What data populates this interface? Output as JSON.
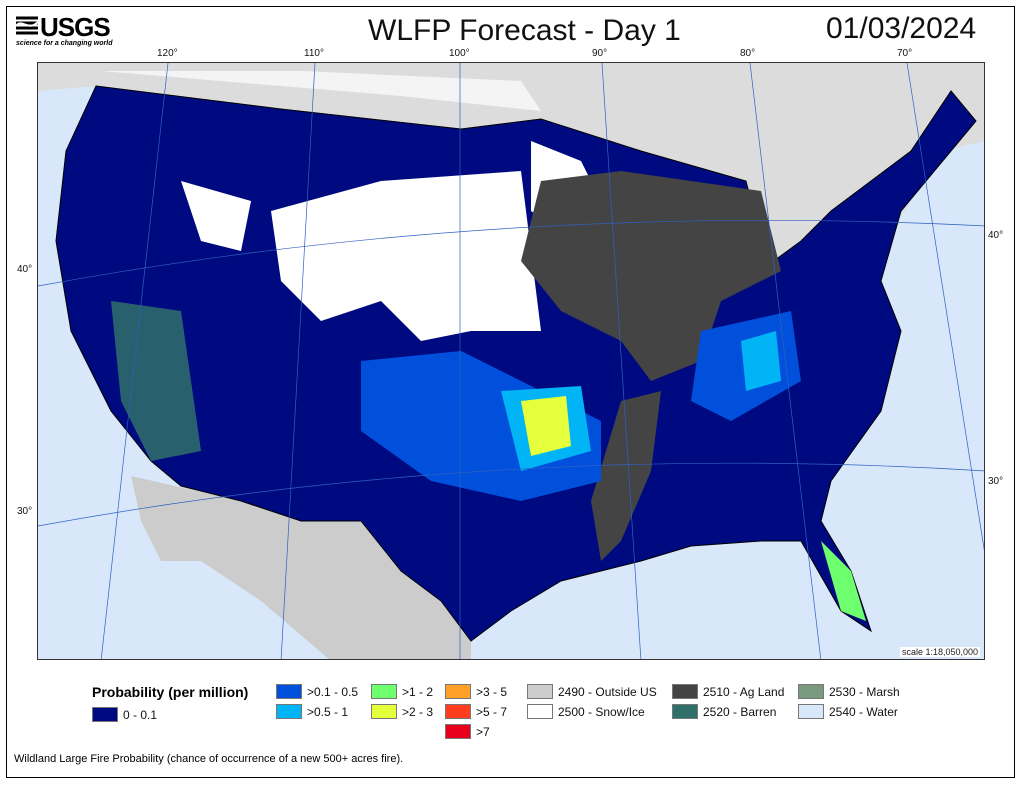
{
  "header": {
    "logo_text": "USGS",
    "logo_tagline": "science for a changing world",
    "title": "WLFP Forecast - Day 1",
    "date": "01/03/2024"
  },
  "map": {
    "lon_labels": [
      "120°",
      "110°",
      "100°",
      "90°",
      "80°",
      "70°"
    ],
    "lat_labels_left": [
      "40°",
      "30°"
    ],
    "lat_labels_right": [
      "40°",
      "30°"
    ],
    "scale": "scale 1:18,050,000"
  },
  "legend": {
    "title": "Probability (per million)",
    "items": [
      {
        "label": "0 - 0.1",
        "color": "#000a80"
      },
      {
        "label": ">0.1 - 0.5",
        "color": "#0050dc"
      },
      {
        "label": ">0.5 - 1",
        "color": "#00b4f5"
      },
      {
        "label": ">1 - 2",
        "color": "#6eff6e"
      },
      {
        "label": ">2 - 3",
        "color": "#e6ff3c"
      },
      {
        "label": ">3 - 5",
        "color": "#ffa028"
      },
      {
        "label": ">5 - 7",
        "color": "#ff3c1e"
      },
      {
        "label": ">7",
        "color": "#e6001e"
      },
      {
        "label": "2490 - Outside US",
        "color": "#cccccc"
      },
      {
        "label": "2500 - Snow/Ice",
        "color": "#ffffff"
      },
      {
        "label": "2510 - Ag Land",
        "color": "#444444"
      },
      {
        "label": "2520 - Barren",
        "color": "#2f706a"
      },
      {
        "label": "2530 - Marsh",
        "color": "#7a9a80"
      },
      {
        "label": "2540 - Water",
        "color": "#d8e8fa"
      }
    ]
  },
  "footer": "Wildland Large Fire Probability (chance of occurrence of a new 500+ acres fire)."
}
